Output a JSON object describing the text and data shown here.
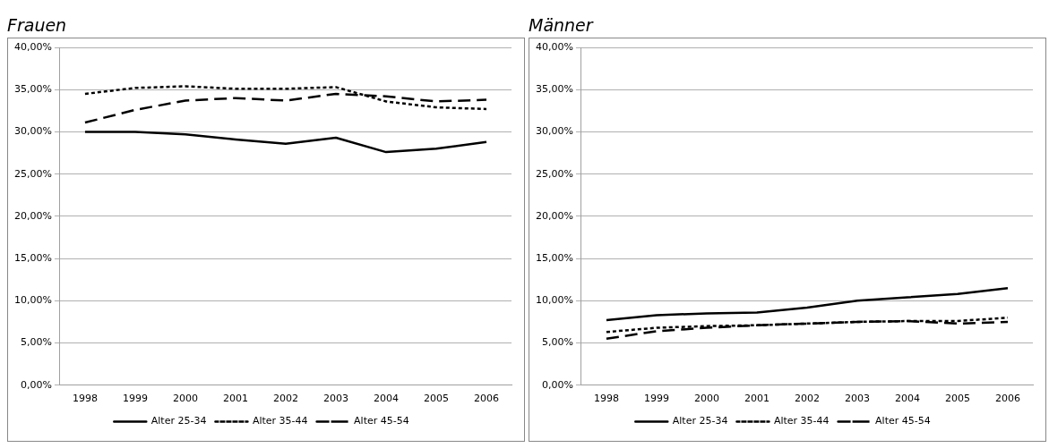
{
  "chart_data": [
    {
      "type": "line",
      "title": "Frauen",
      "categories": [
        "1998",
        "1999",
        "2000",
        "2001",
        "2002",
        "2003",
        "2004",
        "2005",
        "2006"
      ],
      "series": [
        {
          "name": "Alter 25-34",
          "color": "#000000",
          "line_style": "solid",
          "values": [
            30.0,
            30.0,
            29.7,
            29.1,
            28.6,
            29.3,
            27.6,
            28.0,
            28.8
          ]
        },
        {
          "name": "Alter 35-44",
          "color": "#000000",
          "line_style": "dotted",
          "values": [
            34.5,
            35.2,
            35.4,
            35.1,
            35.1,
            35.3,
            33.6,
            32.9,
            32.7
          ]
        },
        {
          "name": "Alter 45-54",
          "color": "#000000",
          "line_style": "dashed",
          "values": [
            31.1,
            32.6,
            33.7,
            34.0,
            33.7,
            34.5,
            34.2,
            33.6,
            33.8
          ]
        }
      ],
      "ylim": [
        0,
        40
      ],
      "yticks": [
        {
          "value": 0,
          "label": "0,00%"
        },
        {
          "value": 5,
          "label": "5,00%"
        },
        {
          "value": 10,
          "label": "10,00%"
        },
        {
          "value": 15,
          "label": "15,00%"
        },
        {
          "value": 20,
          "label": "20,00%"
        },
        {
          "value": 25,
          "label": "25,00%"
        },
        {
          "value": 30,
          "label": "30,00%"
        },
        {
          "value": 35,
          "label": "35,00%"
        },
        {
          "value": 40,
          "label": "40,00%"
        }
      ],
      "grid": "y",
      "legend": "bottom",
      "marker": "none"
    },
    {
      "type": "line",
      "title": "Männer",
      "categories": [
        "1998",
        "1999",
        "2000",
        "2001",
        "2002",
        "2003",
        "2004",
        "2005",
        "2006"
      ],
      "series": [
        {
          "name": "Alter 25-34",
          "color": "#000000",
          "line_style": "solid",
          "values": [
            7.7,
            8.3,
            8.5,
            8.6,
            9.2,
            10.0,
            10.4,
            10.8,
            11.5
          ]
        },
        {
          "name": "Alter 35-44",
          "color": "#000000",
          "line_style": "dotted",
          "values": [
            6.3,
            6.8,
            7.0,
            7.1,
            7.3,
            7.5,
            7.6,
            7.6,
            8.0
          ]
        },
        {
          "name": "Alter 45-54",
          "color": "#000000",
          "line_style": "dashed",
          "values": [
            5.5,
            6.4,
            6.8,
            7.1,
            7.3,
            7.5,
            7.6,
            7.3,
            7.5
          ]
        }
      ],
      "ylim": [
        0,
        40
      ],
      "yticks": [
        {
          "value": 0,
          "label": "0,00%"
        },
        {
          "value": 5,
          "label": "5,00%"
        },
        {
          "value": 10,
          "label": "10,00%"
        },
        {
          "value": 15,
          "label": "15,00%"
        },
        {
          "value": 20,
          "label": "20,00%"
        },
        {
          "value": 25,
          "label": "25,00%"
        },
        {
          "value": 30,
          "label": "30,00%"
        },
        {
          "value": 35,
          "label": "35,00%"
        },
        {
          "value": 40,
          "label": "40,00%"
        }
      ],
      "grid": "y",
      "legend": "bottom",
      "marker": "none"
    }
  ]
}
